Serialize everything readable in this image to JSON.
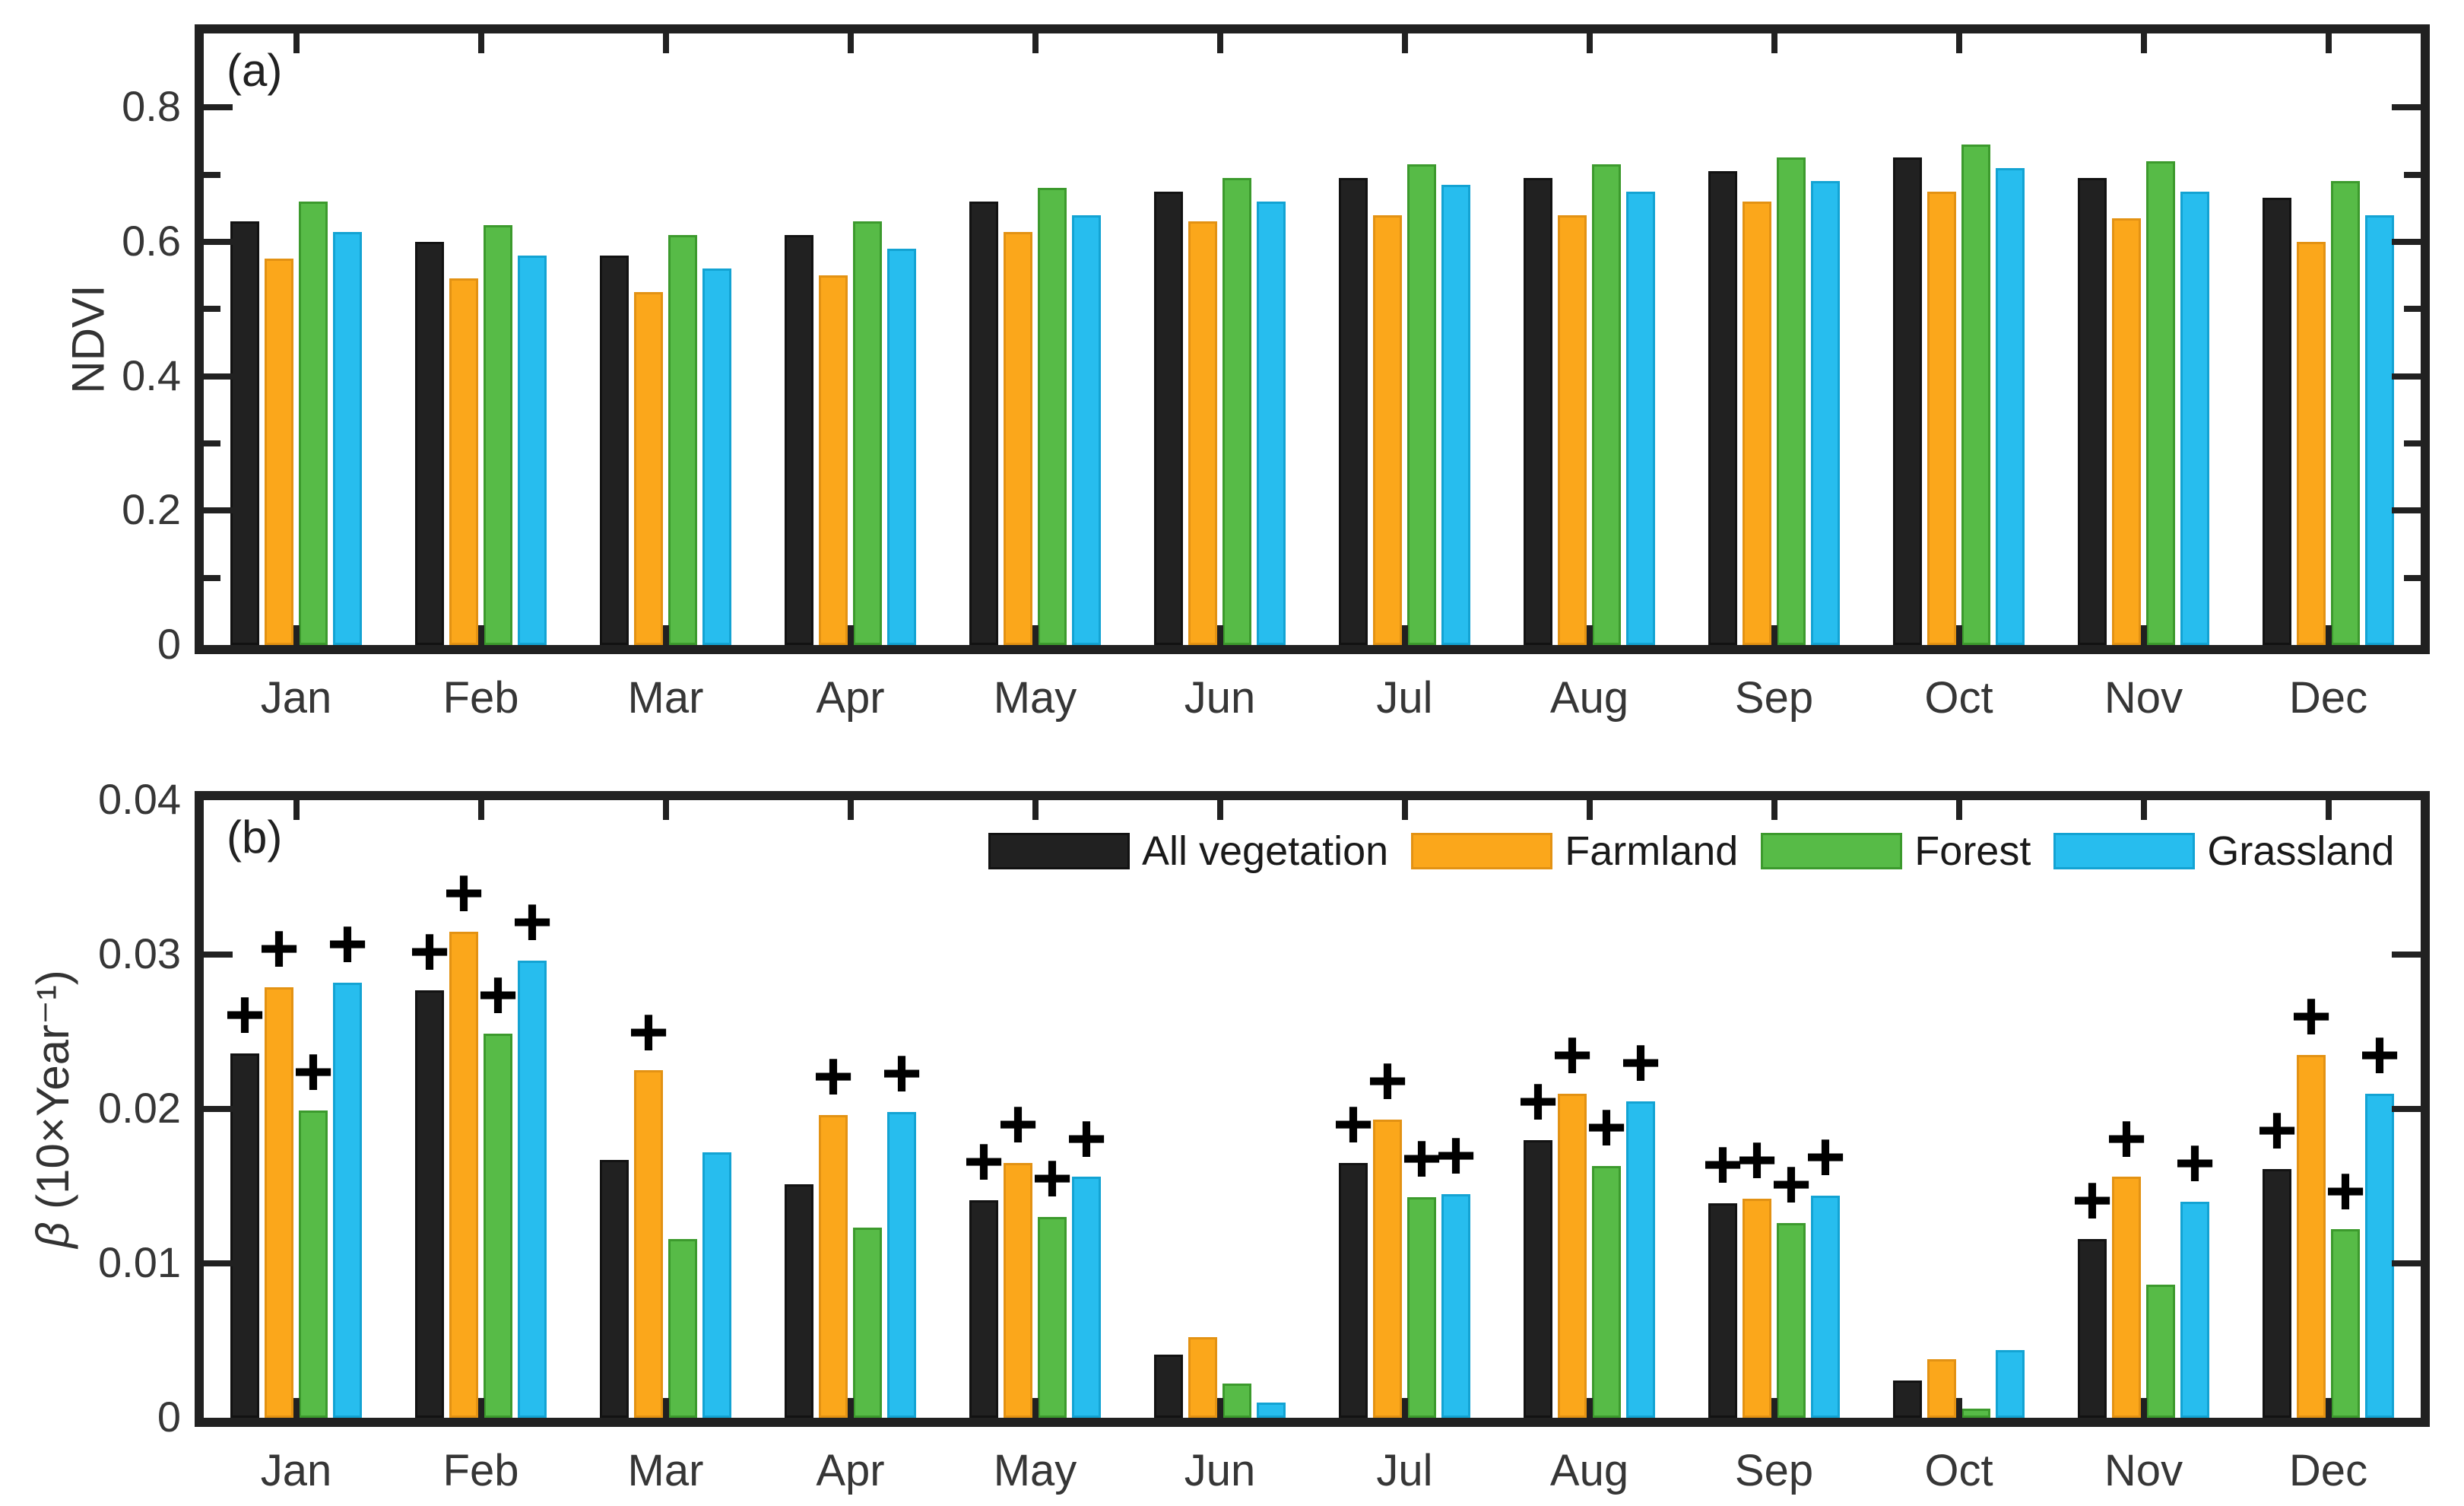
{
  "figure": {
    "background": "#ffffff",
    "axis_color": "#212121",
    "text_color": "#363636"
  },
  "chart_data": [
    {
      "type": "bar",
      "panel_id": "a",
      "panel_label": "(a)",
      "ylabel": "NDVI",
      "xlabel": "",
      "ylim": [
        0,
        0.91
      ],
      "grid": false,
      "categories": [
        "Jan",
        "Feb",
        "Mar",
        "Apr",
        "May",
        "Jun",
        "Jul",
        "Aug",
        "Sep",
        "Oct",
        "Nov",
        "Dec"
      ],
      "yticks": [
        {
          "v": 0,
          "label": "0"
        },
        {
          "v": 0.2,
          "label": "0.2"
        },
        {
          "v": 0.4,
          "label": "0.4"
        },
        {
          "v": 0.6,
          "label": "0.6"
        },
        {
          "v": 0.8,
          "label": "0.8"
        }
      ],
      "yticks_minor": [
        0.1,
        0.3,
        0.5,
        0.7
      ],
      "series": [
        {
          "name": "All vegetation",
          "color": "#212121",
          "edge_color": "#121212",
          "values": [
            0.63,
            0.6,
            0.58,
            0.61,
            0.66,
            0.675,
            0.695,
            0.695,
            0.705,
            0.725,
            0.695,
            0.665
          ]
        },
        {
          "name": "Farmland",
          "color": "#FBA71B",
          "edge_color": "#E39213",
          "values": [
            0.575,
            0.545,
            0.525,
            0.55,
            0.615,
            0.63,
            0.64,
            0.64,
            0.66,
            0.675,
            0.635,
            0.6
          ]
        },
        {
          "name": "Forest",
          "color": "#57BB47",
          "edge_color": "#3C9A2D",
          "values": [
            0.66,
            0.625,
            0.61,
            0.63,
            0.68,
            0.695,
            0.715,
            0.715,
            0.725,
            0.745,
            0.72,
            0.69
          ]
        },
        {
          "name": "Grassland",
          "color": "#27BDEE",
          "edge_color": "#13A3D3",
          "values": [
            0.615,
            0.58,
            0.56,
            0.59,
            0.64,
            0.66,
            0.685,
            0.675,
            0.69,
            0.71,
            0.675,
            0.64
          ]
        }
      ]
    },
    {
      "type": "bar",
      "panel_id": "b",
      "panel_label": "(b)",
      "ylabel": "β (10×Year⁻¹)",
      "xlabel": "",
      "ylim": [
        0,
        0.04
      ],
      "grid": false,
      "plus_marker": "+",
      "legend_position": "top-center-right inside",
      "categories": [
        "Jan",
        "Feb",
        "Mar",
        "Apr",
        "May",
        "Jun",
        "Jul",
        "Aug",
        "Sep",
        "Oct",
        "Nov",
        "Dec"
      ],
      "yticks": [
        {
          "v": 0,
          "label": "0"
        },
        {
          "v": 0.01,
          "label": "0.01"
        },
        {
          "v": 0.02,
          "label": "0.02"
        },
        {
          "v": 0.03,
          "label": "0.03"
        },
        {
          "v": 0.04,
          "label": "0.04"
        }
      ],
      "yticks_minor": [],
      "series": [
        {
          "name": "All vegetation",
          "color": "#212121",
          "edge_color": "#121212",
          "values": [
            0.0236,
            0.0277,
            0.0167,
            0.0151,
            0.0141,
            0.0041,
            0.0165,
            0.018,
            0.0139,
            0.0024,
            0.0116,
            0.0161
          ],
          "significant": [
            1,
            1,
            0,
            0,
            1,
            0,
            1,
            1,
            1,
            0,
            1,
            1
          ]
        },
        {
          "name": "Farmland",
          "color": "#FBA71B",
          "edge_color": "#E39213",
          "values": [
            0.0279,
            0.0315,
            0.0225,
            0.0196,
            0.0165,
            0.0052,
            0.0193,
            0.021,
            0.0142,
            0.0038,
            0.0156,
            0.0235
          ],
          "significant": [
            1,
            1,
            1,
            1,
            1,
            0,
            1,
            1,
            1,
            0,
            1,
            1
          ]
        },
        {
          "name": "Forest",
          "color": "#57BB47",
          "edge_color": "#3C9A2D",
          "values": [
            0.0199,
            0.0249,
            0.0116,
            0.0123,
            0.013,
            0.0022,
            0.0143,
            0.0163,
            0.0126,
            0.0006,
            0.0086,
            0.0122
          ],
          "significant": [
            1,
            1,
            0,
            0,
            1,
            0,
            1,
            1,
            1,
            0,
            0,
            1
          ]
        },
        {
          "name": "Grassland",
          "color": "#27BDEE",
          "edge_color": "#13A3D3",
          "values": [
            0.0282,
            0.0296,
            0.0172,
            0.0198,
            0.0156,
            0.001,
            0.0145,
            0.0205,
            0.0144,
            0.0044,
            0.014,
            0.021
          ],
          "significant": [
            1,
            1,
            0,
            1,
            1,
            0,
            1,
            1,
            1,
            0,
            1,
            1
          ]
        }
      ]
    }
  ]
}
